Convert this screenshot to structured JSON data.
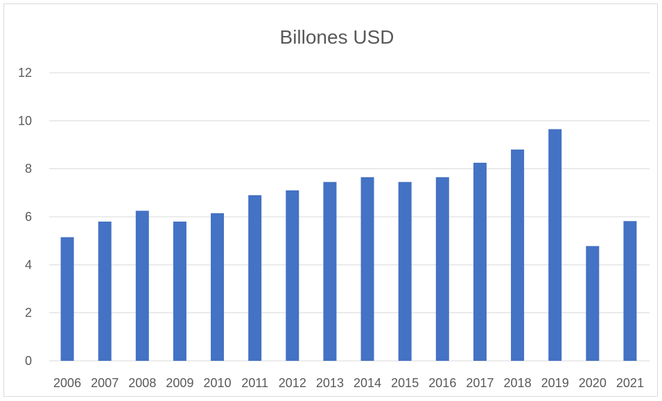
{
  "chart_data": {
    "type": "bar",
    "title": "Billones USD",
    "xlabel": "",
    "ylabel": "",
    "categories": [
      "2006",
      "2007",
      "2008",
      "2009",
      "2010",
      "2011",
      "2012",
      "2013",
      "2014",
      "2015",
      "2016",
      "2017",
      "2018",
      "2019",
      "2020",
      "2021"
    ],
    "values": [
      5.15,
      5.8,
      6.25,
      5.8,
      6.15,
      6.9,
      7.1,
      7.45,
      7.65,
      7.45,
      7.65,
      8.25,
      8.8,
      9.65,
      4.78,
      5.82
    ],
    "ylim": [
      0,
      12
    ],
    "yticks": [
      "0",
      "2",
      "4",
      "6",
      "8",
      "10",
      "12"
    ],
    "grid": true,
    "legend": "none",
    "bar_color": "#4472c4"
  }
}
